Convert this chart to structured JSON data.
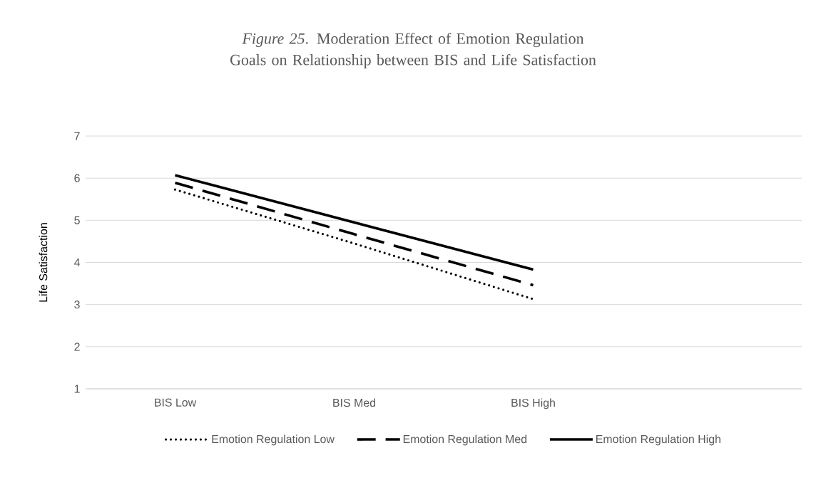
{
  "chart_data": {
    "type": "line",
    "title": "*Figure 25*. Moderation Effect of Emotion Regulation Goals on Relationship between BIS and Life Satisfaction",
    "ylabel": "Life Satisfaction",
    "categories": [
      "BIS Low",
      "BIS Med",
      "BIS High",
      null
    ],
    "series": [
      {
        "name": "Emotion Regulation Low",
        "color": "#000000",
        "line_style": "dotted",
        "values": [
          5.73,
          4.45,
          3.13,
          null
        ]
      },
      {
        "name": "Emotion Regulation Med",
        "color": "#000000",
        "line_style": "dashed",
        "values": [
          5.89,
          4.67,
          3.46,
          null
        ]
      },
      {
        "name": "Emotion Regulation High",
        "color": "#000000",
        "line_style": "solid",
        "values": [
          6.07,
          4.95,
          3.83,
          null
        ]
      }
    ],
    "ylim": [
      1,
      7
    ],
    "yticks": [
      1,
      2,
      3,
      4,
      5,
      6,
      7
    ],
    "grid": "y",
    "legend": "bottom",
    "marker": "none"
  }
}
